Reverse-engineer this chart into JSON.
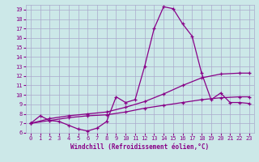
{
  "xlabel": "Windchill (Refroidissement éolien,°C)",
  "bg_color": "#cce8e8",
  "grid_color": "#aaaacc",
  "line_color": "#880088",
  "xlim": [
    -0.5,
    23.5
  ],
  "ylim": [
    6,
    19.5
  ],
  "xticks": [
    0,
    1,
    2,
    3,
    4,
    5,
    6,
    7,
    8,
    9,
    10,
    11,
    12,
    13,
    14,
    15,
    16,
    17,
    18,
    19,
    20,
    21,
    22,
    23
  ],
  "yticks": [
    6,
    7,
    8,
    9,
    10,
    11,
    12,
    13,
    14,
    15,
    16,
    17,
    18,
    19
  ],
  "line1_x": [
    0,
    1,
    2,
    3,
    4,
    5,
    6,
    7,
    8,
    9,
    10,
    11,
    12,
    13,
    14,
    15,
    16,
    17,
    18,
    19,
    20,
    21,
    22,
    23
  ],
  "line1_y": [
    7.0,
    7.8,
    7.3,
    7.2,
    6.8,
    6.4,
    6.2,
    6.5,
    7.2,
    9.8,
    9.2,
    9.5,
    13.0,
    17.0,
    19.3,
    19.1,
    17.5,
    16.2,
    12.3,
    9.5,
    10.2,
    9.2,
    9.2,
    9.1
  ],
  "line2_x": [
    0,
    2,
    4,
    6,
    8,
    10,
    12,
    14,
    16,
    18,
    20,
    22,
    23
  ],
  "line2_y": [
    7.0,
    7.5,
    7.8,
    8.0,
    8.2,
    8.7,
    9.3,
    10.1,
    11.0,
    11.8,
    12.2,
    12.3,
    12.3
  ],
  "line3_x": [
    0,
    2,
    4,
    6,
    8,
    10,
    12,
    14,
    16,
    18,
    20,
    22,
    23
  ],
  "line3_y": [
    7.0,
    7.3,
    7.6,
    7.8,
    7.9,
    8.2,
    8.6,
    8.9,
    9.2,
    9.5,
    9.7,
    9.8,
    9.8
  ]
}
